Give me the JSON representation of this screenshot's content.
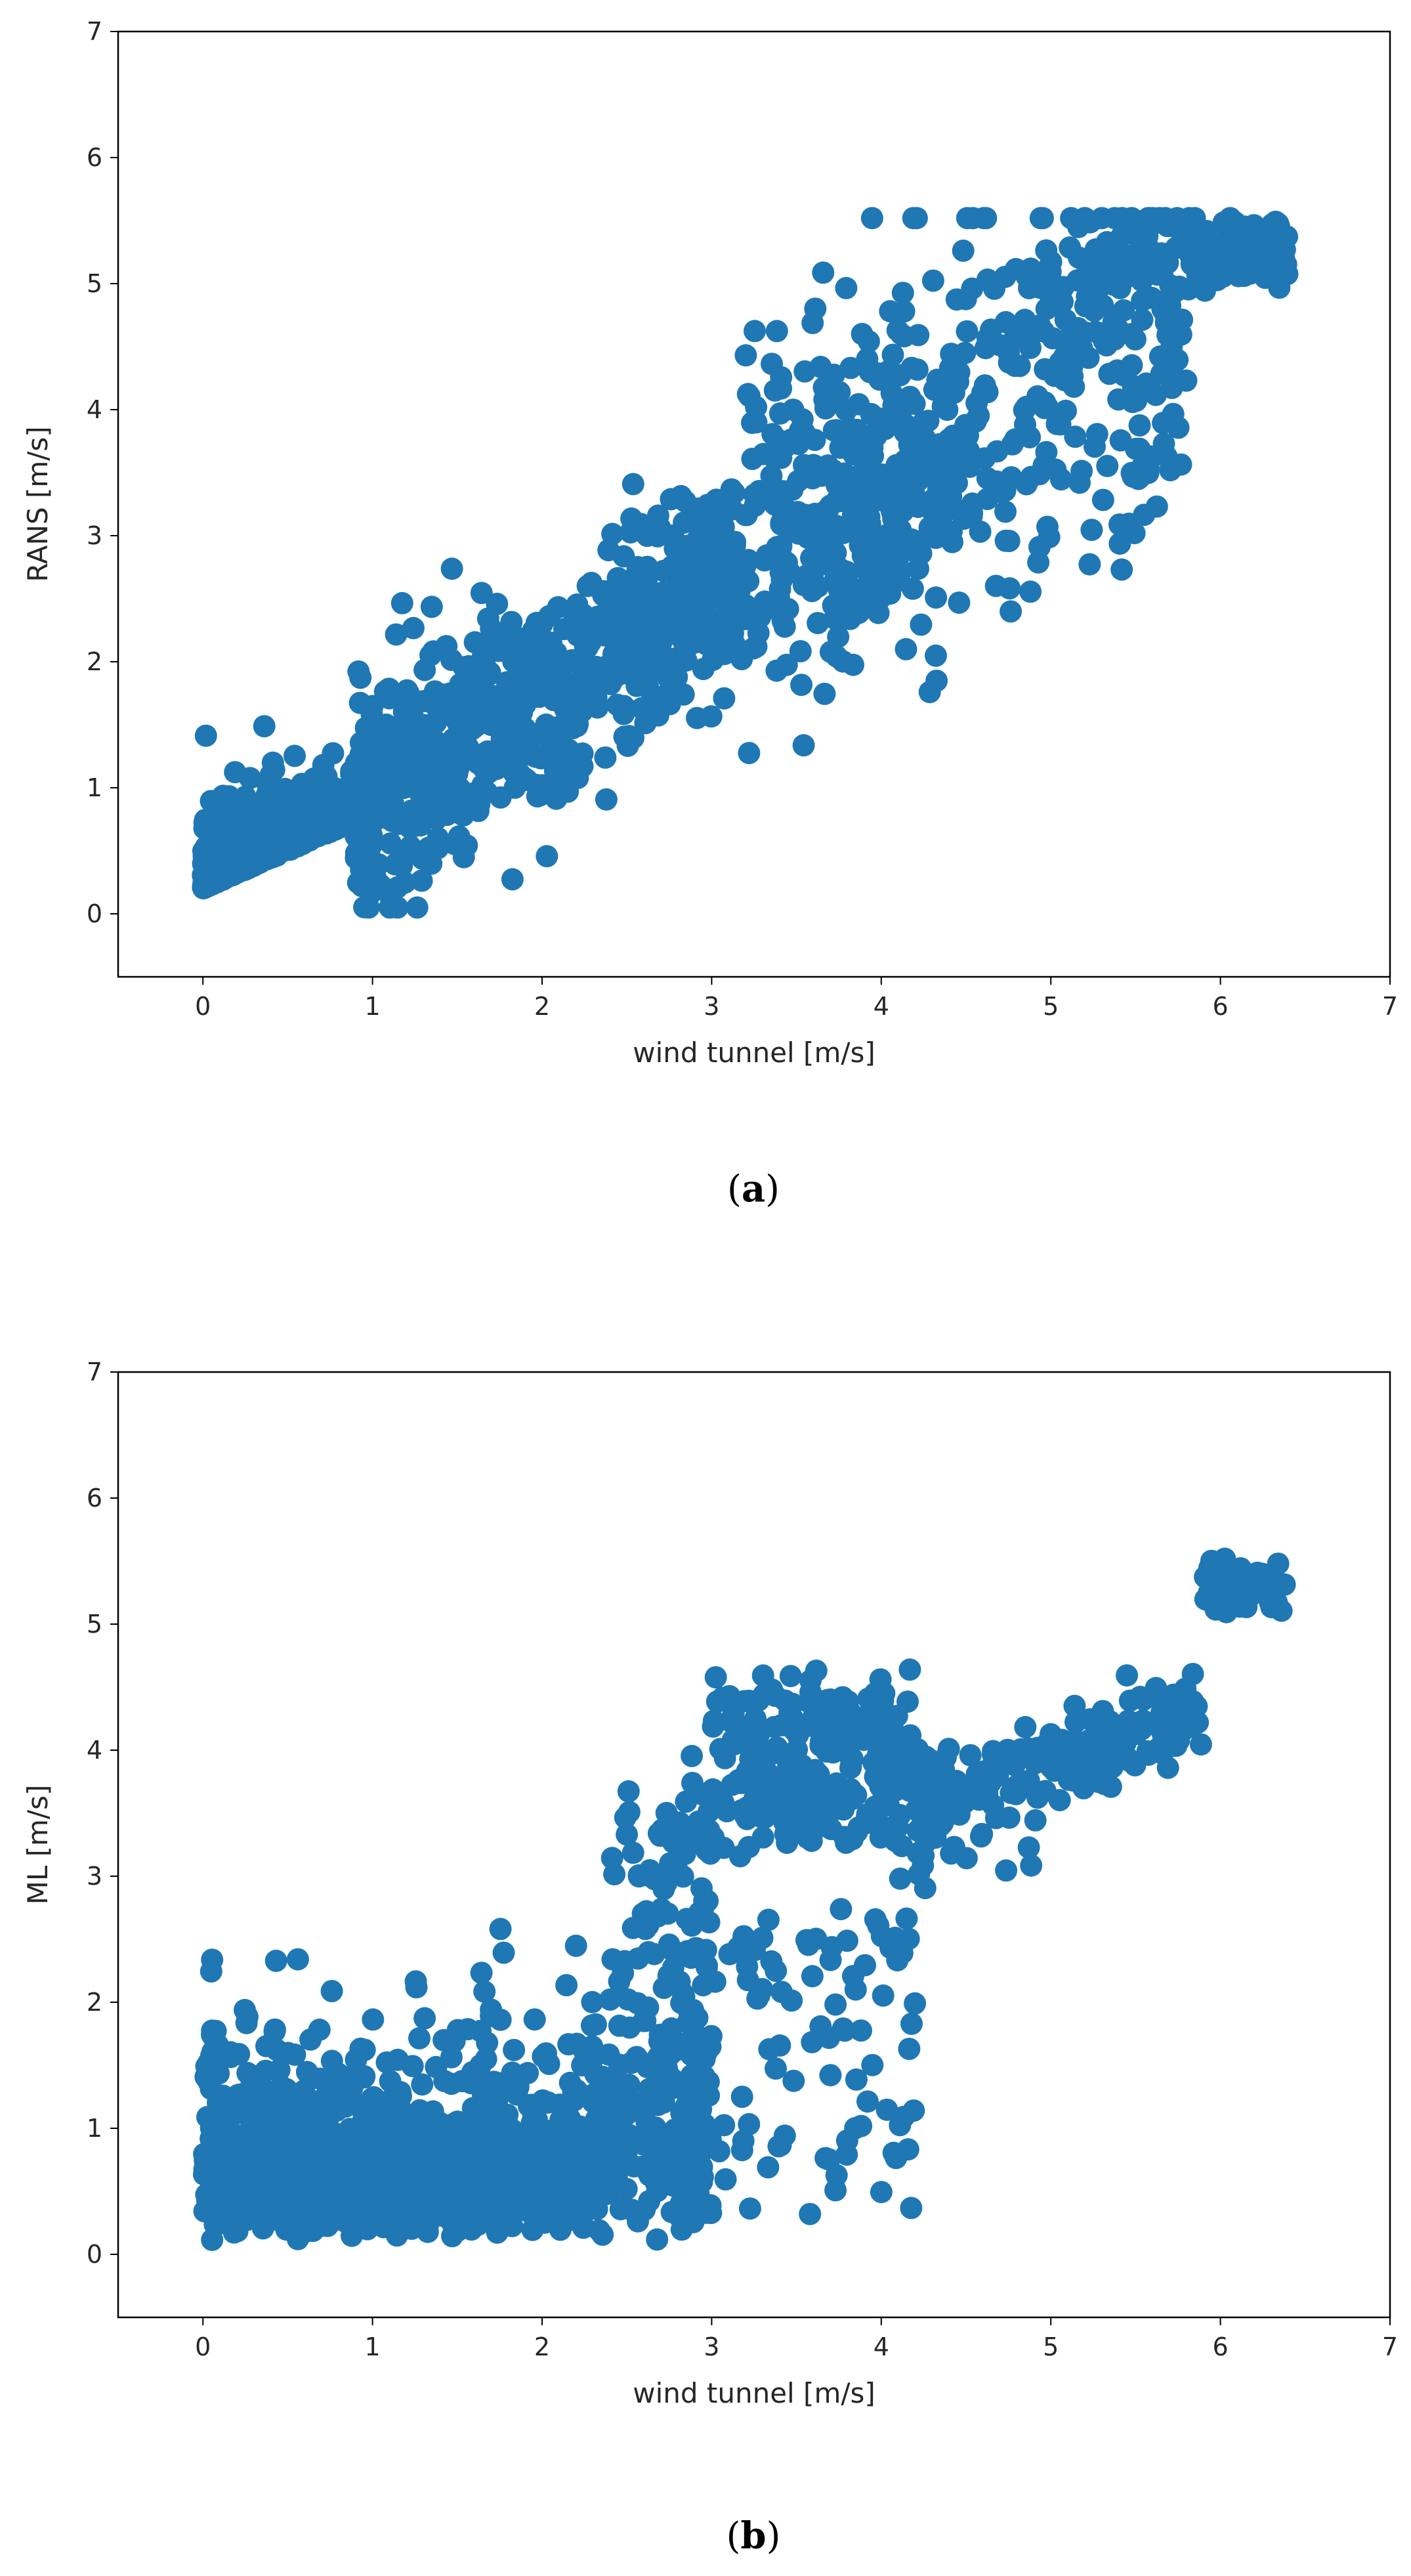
{
  "chart_data": [
    {
      "type": "scatter",
      "id": "a",
      "caption_letter": "a",
      "xlabel": "wind tunnel [m/s]",
      "ylabel": "RANS [m/s]",
      "xlim": [
        -0.5,
        7
      ],
      "ylim": [
        -0.5,
        7
      ],
      "xticks": [
        "0",
        "1",
        "2",
        "3",
        "4",
        "5",
        "6",
        "7"
      ],
      "yticks": [
        "0",
        "1",
        "2",
        "3",
        "4",
        "5",
        "6",
        "7"
      ],
      "marker_color": "#1f77b4",
      "grid": false,
      "n_points": 2200,
      "approx_x_range": [
        0,
        6.4
      ],
      "approx_y_range": [
        0.05,
        5.5
      ]
    },
    {
      "type": "scatter",
      "id": "b",
      "caption_letter": "b",
      "xlabel": "wind tunnel [m/s]",
      "ylabel": "ML [m/s]",
      "xlim": [
        -0.5,
        7
      ],
      "ylim": [
        -0.5,
        7
      ],
      "xticks": [
        "0",
        "1",
        "2",
        "3",
        "4",
        "5",
        "6",
        "7"
      ],
      "yticks": [
        "0",
        "1",
        "2",
        "3",
        "4",
        "5",
        "6",
        "7"
      ],
      "marker_color": "#1f77b4",
      "grid": false,
      "n_points": 2200,
      "approx_x_range": [
        0,
        6.4
      ],
      "approx_y_range": [
        0.0,
        5.7
      ]
    }
  ]
}
